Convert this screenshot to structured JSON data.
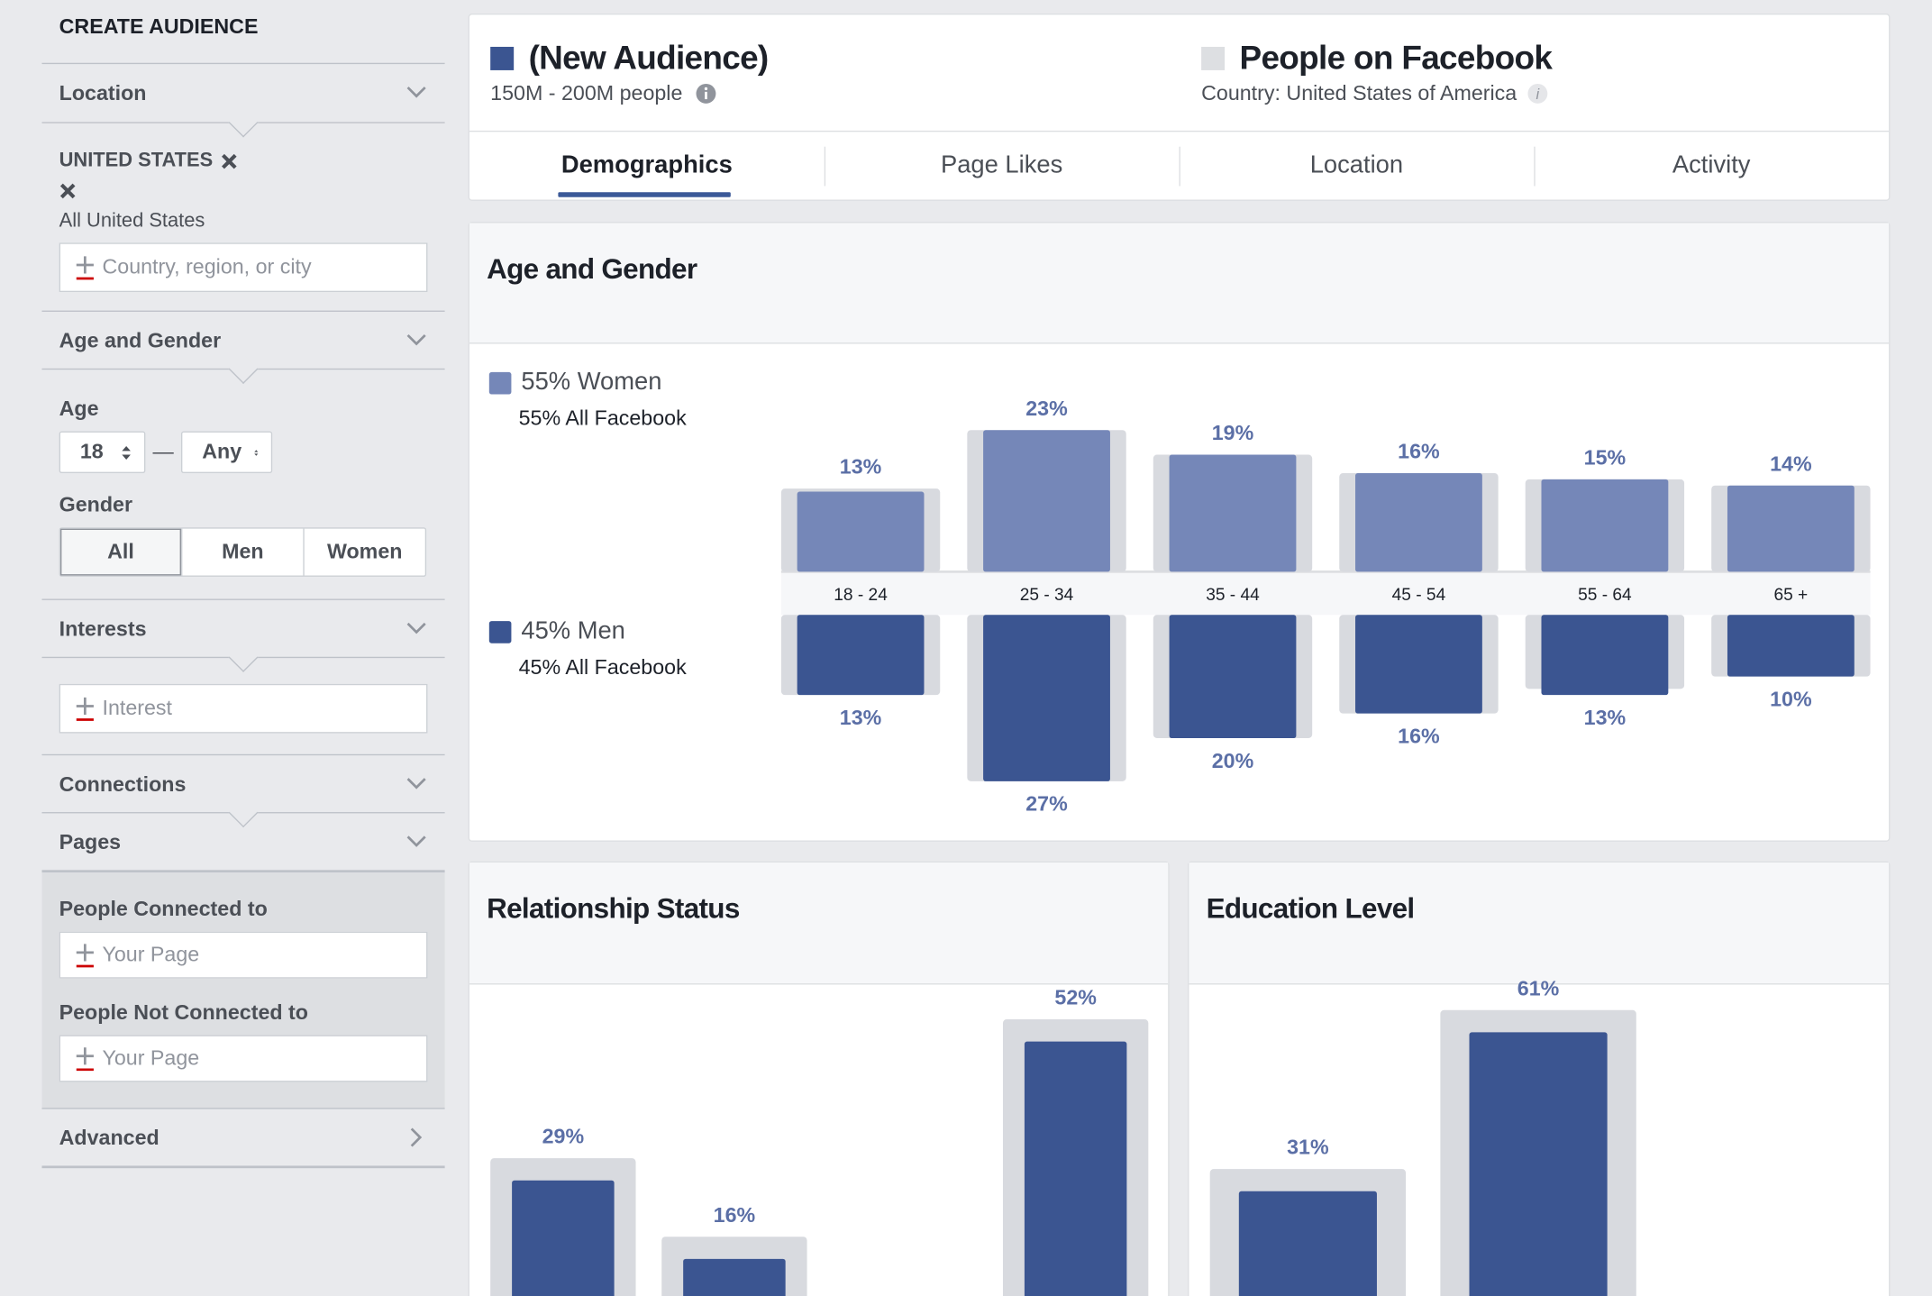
{
  "sidebar": {
    "title": "CREATE AUDIENCE",
    "location": {
      "label": "Location",
      "country": "UNITED STATES",
      "scope": "All United States",
      "placeholder": "Country, region, or city"
    },
    "age_gender": {
      "label": "Age and Gender",
      "age_label": "Age",
      "age_from": "18",
      "age_sep": "—",
      "age_to": "Any",
      "gender_label": "Gender",
      "gender_options": [
        "All",
        "Men",
        "Women"
      ],
      "gender_selected": "All"
    },
    "interests": {
      "label": "Interests",
      "placeholder": "Interest"
    },
    "connections": {
      "label": "Connections"
    },
    "pages": {
      "label": "Pages",
      "connected_label": "People Connected to",
      "connected_placeholder": "Your Page",
      "not_connected_label": "People Not Connected to",
      "not_connected_placeholder": "Your Page"
    },
    "advanced": {
      "label": "Advanced"
    }
  },
  "header": {
    "audience": {
      "name": "(New Audience)",
      "size": "150M - 200M people"
    },
    "baseline": {
      "name": "People on Facebook",
      "country": "Country: United States of America"
    }
  },
  "tabs": [
    "Demographics",
    "Page Likes",
    "Location",
    "Activity"
  ],
  "tab_selected": "Demographics",
  "colors": {
    "women": "#7587b8",
    "men": "#3b5591",
    "baseline": "#d8dadf",
    "label": "#5b6fa6",
    "accent": "#3b5998"
  },
  "age_gender_card": {
    "title": "Age and Gender",
    "women_legend": "55% Women",
    "women_baseline": "55% All Facebook",
    "men_legend": "45% Men",
    "men_baseline": "45% All Facebook"
  },
  "relationship_card": {
    "title": "Relationship Status"
  },
  "education_card": {
    "title": "Education Level"
  },
  "chart_data": [
    {
      "type": "bar",
      "title": "Age and Gender",
      "categories": [
        "18 - 24",
        "25 - 34",
        "35 - 44",
        "45 - 54",
        "55 - 64",
        "65 +"
      ],
      "series": [
        {
          "name": "55% Women",
          "values": [
            13,
            23,
            19,
            16,
            15,
            14
          ],
          "labels": [
            "13%",
            "23%",
            "19%",
            "16%",
            "15%",
            "14%"
          ]
        },
        {
          "name": "45% Men",
          "values": [
            13,
            27,
            20,
            16,
            13,
            10
          ],
          "labels": [
            "13%",
            "27%",
            "20%",
            "16%",
            "13%",
            "10%"
          ]
        }
      ],
      "baseline_women": [
        13.5,
        23,
        19,
        16,
        15,
        14
      ],
      "baseline_men": [
        13,
        27,
        20,
        16,
        12,
        10
      ]
    },
    {
      "type": "bar",
      "title": "Relationship Status",
      "values": [
        29,
        16,
        52
      ],
      "labels": [
        "29%",
        "16%",
        "52%"
      ],
      "baseline": [
        29,
        16,
        52
      ]
    },
    {
      "type": "bar",
      "title": "Education Level",
      "values": [
        31,
        61
      ],
      "labels": [
        "31%",
        "61%"
      ],
      "baseline": [
        31,
        61
      ]
    }
  ]
}
